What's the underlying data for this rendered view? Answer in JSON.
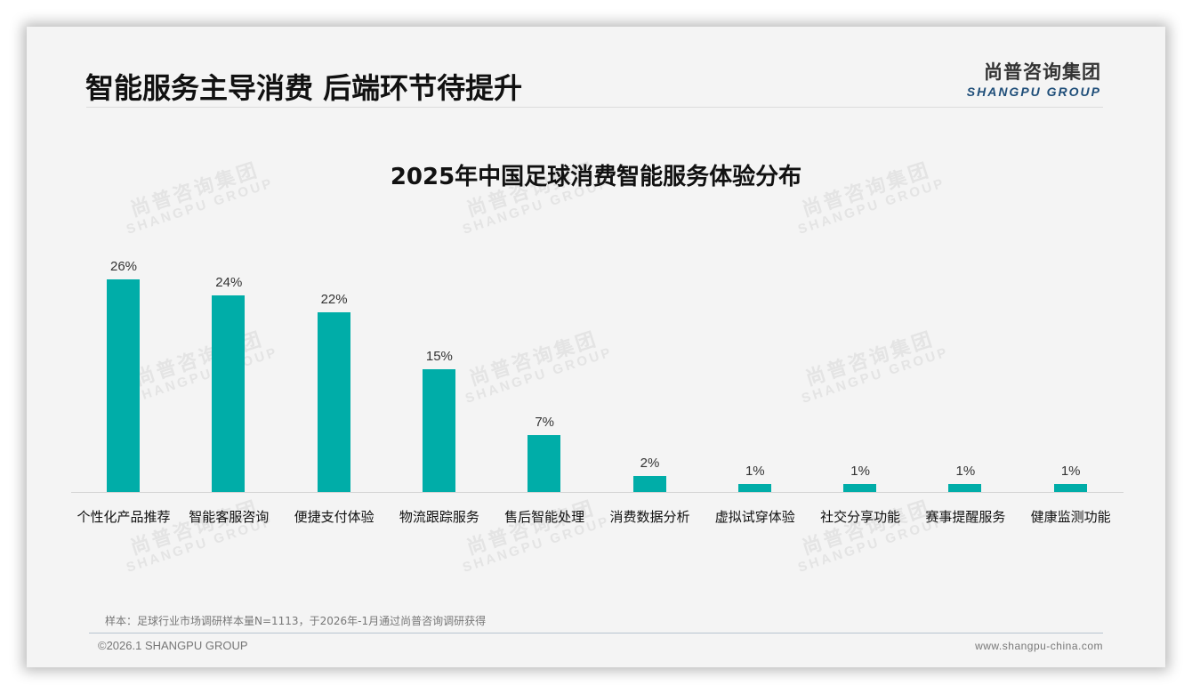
{
  "header": {
    "title": "智能服务主导消费 后端环节待提升",
    "logo_cn": "尚普咨询集团",
    "logo_en": "SHANGPU GROUP"
  },
  "watermark": {
    "cn": "尚普咨询集团",
    "en": "SHANGPU GROUP"
  },
  "colors": {
    "bar": "#00ada8",
    "logo_en": "#1f4e79",
    "background": "#f4f4f4"
  },
  "chart_data": {
    "type": "bar",
    "title": "2025年中国足球消费智能服务体验分布",
    "xlabel": "",
    "ylabel": "",
    "ylim": [
      0,
      30
    ],
    "grid": false,
    "legend": null,
    "categories": [
      "个性化产品推荐",
      "智能客服咨询",
      "便捷支付体验",
      "物流跟踪服务",
      "售后智能处理",
      "消费数据分析",
      "虚拟试穿体验",
      "社交分享功能",
      "赛事提醒服务",
      "健康监测功能"
    ],
    "values": [
      26,
      24,
      22,
      15,
      7,
      2,
      1,
      1,
      1,
      1
    ],
    "value_labels": [
      "26%",
      "24%",
      "22%",
      "15%",
      "7%",
      "2%",
      "1%",
      "1%",
      "1%",
      "1%"
    ],
    "unit": "%"
  },
  "footer": {
    "note": "样本：足球行业市场调研样本量N=1113，于2026年-1月通过尚普咨询调研获得",
    "copyright": "©2026.1 SHANGPU GROUP",
    "website": "www.shangpu-china.com"
  }
}
